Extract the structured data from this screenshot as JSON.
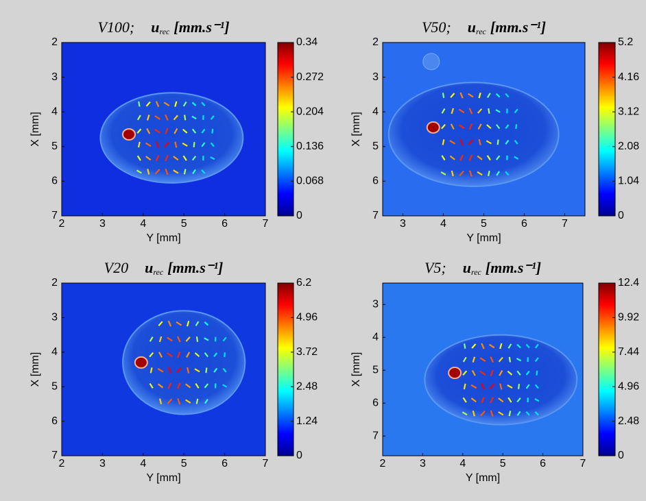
{
  "chart_data": [
    {
      "type": "heatmap",
      "title": "V100;",
      "quantity": "u",
      "quantity_subscript": "rec",
      "units": "[mm.s⁻¹]",
      "xlabel": "Y [mm]",
      "ylabel": "X [mm]",
      "colormap": "jet",
      "xlim": [
        2,
        7
      ],
      "xticks": [
        2,
        3,
        4,
        5,
        6,
        7
      ],
      "ylim": [
        2,
        7
      ],
      "yticks": [
        2,
        3,
        4,
        5,
        6,
        7
      ],
      "y_reversed": true,
      "clim": [
        0,
        0.34
      ],
      "cticks": [
        0,
        0.068,
        0.136,
        0.204,
        0.272,
        0.34
      ]
    },
    {
      "type": "heatmap",
      "title": "V50;",
      "quantity": "u",
      "quantity_subscript": "rec",
      "units": "[mm.s⁻¹]",
      "xlabel": "Y [mm]",
      "ylabel": "X [mm]",
      "colormap": "jet",
      "xlim": [
        2.5,
        7.5
      ],
      "xticks": [
        3,
        4,
        5,
        6,
        7
      ],
      "ylim": [
        2,
        7
      ],
      "yticks": [
        2,
        3,
        4,
        5,
        6,
        7
      ],
      "y_reversed": true,
      "clim": [
        0,
        5.2
      ],
      "cticks": [
        0,
        1.04,
        2.08,
        3.12,
        4.16,
        5.2
      ]
    },
    {
      "type": "heatmap",
      "title": "V20",
      "quantity": "u",
      "quantity_subscript": "rec",
      "units": "[mm.s⁻¹]",
      "xlabel": "Y [mm]",
      "ylabel": "X [mm]",
      "colormap": "jet",
      "xlim": [
        2,
        7
      ],
      "xticks": [
        2,
        3,
        4,
        5,
        6,
        7
      ],
      "ylim": [
        2,
        7
      ],
      "yticks": [
        2,
        3,
        4,
        5,
        6,
        7
      ],
      "y_reversed": true,
      "clim": [
        0,
        6.2
      ],
      "cticks": [
        0,
        1.24,
        2.48,
        3.72,
        4.96,
        6.2
      ]
    },
    {
      "type": "heatmap",
      "title": "V5;",
      "quantity": "u",
      "quantity_subscript": "rec",
      "units": "[mm.s⁻¹]",
      "xlabel": "Y [mm]",
      "ylabel": "X [mm]",
      "colormap": "jet",
      "xlim": [
        2,
        7
      ],
      "xticks": [
        2,
        3,
        4,
        5,
        6,
        7
      ],
      "ylim": [
        2.35,
        7.6
      ],
      "yticks": [
        3,
        4,
        5,
        6,
        7
      ],
      "y_reversed": true,
      "clim": [
        0,
        12.4
      ],
      "cticks": [
        0,
        2.48,
        4.96,
        7.44,
        9.92,
        12.4
      ]
    }
  ]
}
